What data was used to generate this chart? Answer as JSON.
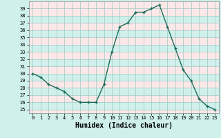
{
  "x": [
    0,
    1,
    2,
    3,
    4,
    5,
    6,
    7,
    8,
    9,
    10,
    11,
    12,
    13,
    14,
    15,
    16,
    17,
    18,
    19,
    20,
    21,
    22,
    23
  ],
  "y": [
    30,
    29.5,
    28.5,
    28,
    27.5,
    26.5,
    26,
    26,
    26,
    28.5,
    33,
    36.5,
    37,
    38.5,
    38.5,
    39,
    39.5,
    36.5,
    33.5,
    30.5,
    29,
    26.5,
    25.5,
    25
  ],
  "xlabel": "Humidex (Indice chaleur)",
  "ylim": [
    24.5,
    40
  ],
  "xlim": [
    -0.5,
    23.5
  ],
  "bg_color": "#cff0eb",
  "plot_bg_color": "#fce8e8",
  "line_color": "#1a6b5a",
  "grid_color": "#a0c8c4",
  "title_fontsize": 7,
  "xlabel_fontsize": 7,
  "tick_fontsize": 5.5,
  "yticks": [
    25,
    26,
    27,
    28,
    29,
    30,
    31,
    32,
    33,
    34,
    35,
    36,
    37,
    38,
    39
  ],
  "xticks": [
    0,
    1,
    2,
    3,
    4,
    5,
    6,
    7,
    8,
    9,
    10,
    11,
    12,
    13,
    14,
    15,
    16,
    17,
    18,
    19,
    20,
    21,
    22,
    23
  ]
}
